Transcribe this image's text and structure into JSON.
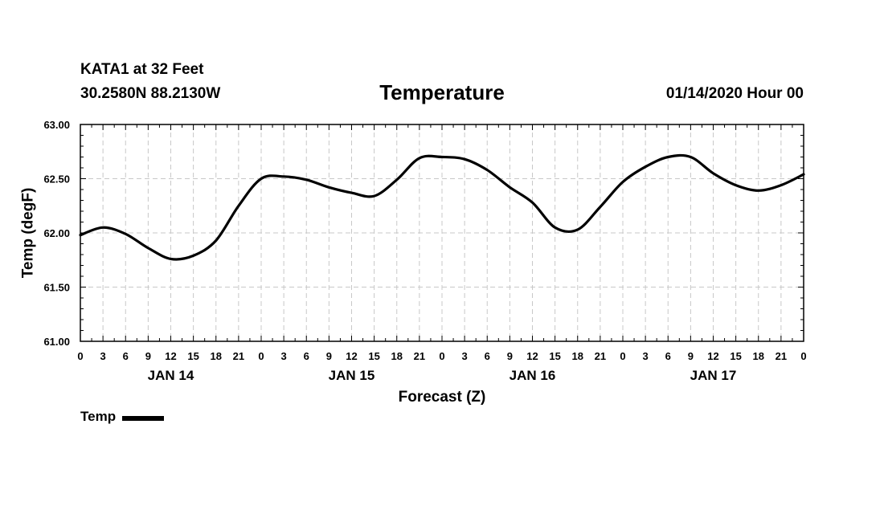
{
  "header": {
    "station": "KATA1 at 32 Feet",
    "coords": "30.2580N 88.2130W",
    "datetime": "01/14/2020 Hour 00"
  },
  "chart_data": {
    "type": "line",
    "title": "Temperature",
    "xlabel": "Forecast (Z)",
    "ylabel": "Temp (degF)",
    "ylim": [
      61.0,
      63.0
    ],
    "yticks": [
      "63.00",
      "62.50",
      "62.00",
      "61.50",
      "61.00"
    ],
    "xlim_hours": [
      0,
      96
    ],
    "x_tick_labels": [
      "0",
      "3",
      "6",
      "9",
      "12",
      "15",
      "18",
      "21",
      "0",
      "3",
      "6",
      "9",
      "12",
      "15",
      "18",
      "21",
      "0",
      "3",
      "6",
      "9",
      "12",
      "15",
      "18",
      "21",
      "0",
      "3",
      "6",
      "9",
      "12",
      "15",
      "18",
      "21",
      "0"
    ],
    "day_labels": [
      {
        "label": "JAN 14",
        "hour": 12
      },
      {
        "label": "JAN 15",
        "hour": 36
      },
      {
        "label": "JAN 16",
        "hour": 60
      },
      {
        "label": "JAN 17",
        "hour": 84
      }
    ],
    "grid": true,
    "series": [
      {
        "name": "Temp",
        "color": "#000000",
        "x": [
          0,
          3,
          6,
          9,
          12,
          15,
          18,
          21,
          24,
          27,
          30,
          33,
          36,
          39,
          42,
          45,
          48,
          51,
          54,
          57,
          60,
          63,
          66,
          69,
          72,
          75,
          78,
          81,
          84,
          87,
          90,
          93,
          96
        ],
        "values": [
          61.98,
          62.05,
          61.99,
          61.86,
          61.76,
          61.79,
          61.93,
          62.25,
          62.5,
          62.52,
          62.49,
          62.42,
          62.37,
          62.34,
          62.49,
          62.69,
          62.7,
          62.68,
          62.58,
          62.42,
          62.28,
          62.05,
          62.03,
          62.24,
          62.47,
          62.61,
          62.7,
          62.7,
          62.55,
          62.44,
          62.39,
          62.44,
          62.54
        ]
      }
    ],
    "legend": {
      "label": "Temp",
      "placement": "bottom-left"
    }
  }
}
